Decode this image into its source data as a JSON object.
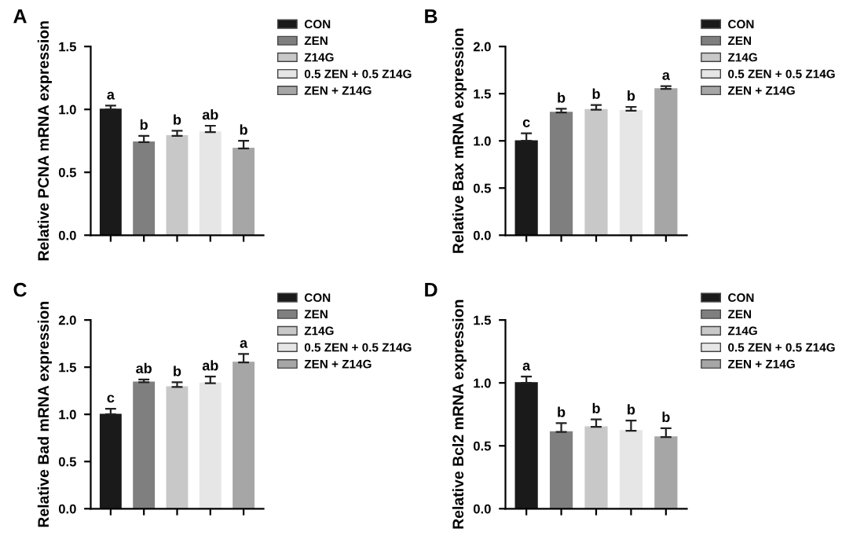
{
  "chart_data": [
    {
      "type": "bar",
      "title": "A",
      "ylabel": "Relative PCNA mRNA expression",
      "categories": [
        null,
        null,
        null,
        null,
        null
      ],
      "ylim": [
        0,
        1.5
      ],
      "yticks": [
        {
          "value": 0,
          "label": "0.0"
        },
        {
          "value": 0.5,
          "label": "0.5"
        },
        {
          "value": 1,
          "label": "1.0"
        },
        {
          "value": 1.5,
          "label": "1.5"
        }
      ],
      "tick_labels": "y",
      "legend": "right",
      "grid": false,
      "series": [
        {
          "name": "CON",
          "color": "#1a1a1a",
          "values": [
            1.0,
            null,
            null,
            null,
            null
          ],
          "errors": [
            [
              1.0,
              1.03
            ],
            null,
            null,
            null,
            null
          ],
          "value_labels": [
            "a",
            null,
            null,
            null,
            null
          ]
        },
        {
          "name": "ZEN",
          "color": "#7f7f7f",
          "values": [
            null,
            0.74,
            null,
            null,
            null
          ],
          "errors": [
            null,
            [
              0.74,
              0.79
            ],
            null,
            null,
            null
          ],
          "value_labels": [
            null,
            "b",
            null,
            null,
            null
          ]
        },
        {
          "name": "Z14G",
          "color": "#c8c8c8",
          "values": [
            null,
            null,
            0.79,
            null,
            null
          ],
          "errors": [
            null,
            null,
            [
              0.79,
              0.83
            ],
            null,
            null
          ],
          "value_labels": [
            null,
            null,
            "b",
            null,
            null
          ]
        },
        {
          "name": "0.5 ZEN + 0.5 Z14G",
          "color": "#e6e6e6",
          "values": [
            null,
            null,
            null,
            0.82,
            null
          ],
          "errors": [
            null,
            null,
            null,
            [
              0.82,
              0.87
            ],
            null
          ],
          "value_labels": [
            null,
            null,
            null,
            "ab",
            null
          ]
        },
        {
          "name": "ZEN + Z14G",
          "color": "#a6a6a6",
          "values": [
            null,
            null,
            null,
            null,
            0.69
          ],
          "errors": [
            null,
            null,
            null,
            null,
            [
              0.69,
              0.75
            ]
          ],
          "value_labels": [
            null,
            null,
            null,
            null,
            "b"
          ]
        }
      ]
    },
    {
      "type": "bar",
      "title": "B",
      "ylabel": "Relative Bax mRNA expression",
      "categories": [
        null,
        null,
        null,
        null,
        null
      ],
      "ylim": [
        0,
        2.0
      ],
      "yticks": [
        {
          "value": 0,
          "label": "0.0"
        },
        {
          "value": 0.5,
          "label": "0.5"
        },
        {
          "value": 1,
          "label": "1.0"
        },
        {
          "value": 1.5,
          "label": "1.5"
        },
        {
          "value": 2,
          "label": "2.0"
        }
      ],
      "tick_labels": "y",
      "legend": "right",
      "grid": false,
      "series": [
        {
          "name": "CON",
          "color": "#1a1a1a",
          "values": [
            1.0,
            null,
            null,
            null,
            null
          ],
          "errors": [
            [
              1.0,
              1.08
            ],
            null,
            null,
            null,
            null
          ],
          "value_labels": [
            "c",
            null,
            null,
            null,
            null
          ]
        },
        {
          "name": "ZEN",
          "color": "#7f7f7f",
          "values": [
            null,
            1.3,
            null,
            null,
            null
          ],
          "errors": [
            null,
            [
              1.3,
              1.34
            ],
            null,
            null,
            null
          ],
          "value_labels": [
            null,
            "b",
            null,
            null,
            null
          ]
        },
        {
          "name": "Z14G",
          "color": "#c8c8c8",
          "values": [
            null,
            null,
            1.33,
            null,
            null
          ],
          "errors": [
            null,
            null,
            [
              1.33,
              1.38
            ],
            null,
            null
          ],
          "value_labels": [
            null,
            null,
            "b",
            null,
            null
          ]
        },
        {
          "name": "0.5 ZEN + 0.5 Z14G",
          "color": "#e6e6e6",
          "values": [
            null,
            null,
            null,
            1.32,
            null
          ],
          "errors": [
            null,
            null,
            null,
            [
              1.32,
              1.36
            ],
            null
          ],
          "value_labels": [
            null,
            null,
            null,
            "b",
            null
          ]
        },
        {
          "name": "ZEN + Z14G",
          "color": "#a6a6a6",
          "values": [
            null,
            null,
            null,
            null,
            1.55
          ],
          "errors": [
            null,
            null,
            null,
            null,
            [
              1.55,
              1.58
            ]
          ],
          "value_labels": [
            null,
            null,
            null,
            null,
            "a"
          ]
        }
      ]
    },
    {
      "type": "bar",
      "title": "C",
      "ylabel": "Relative Bad mRNA expression",
      "categories": [
        null,
        null,
        null,
        null,
        null
      ],
      "ylim": [
        0,
        2.0
      ],
      "yticks": [
        {
          "value": 0,
          "label": "0.0"
        },
        {
          "value": 0.5,
          "label": "0.5"
        },
        {
          "value": 1,
          "label": "1.0"
        },
        {
          "value": 1.5,
          "label": "1.5"
        },
        {
          "value": 2,
          "label": "2.0"
        }
      ],
      "tick_labels": "y",
      "legend": "right",
      "grid": false,
      "series": [
        {
          "name": "CON",
          "color": "#1a1a1a",
          "values": [
            1.0,
            null,
            null,
            null,
            null
          ],
          "errors": [
            [
              1.0,
              1.06
            ],
            null,
            null,
            null,
            null
          ],
          "value_labels": [
            "c",
            null,
            null,
            null,
            null
          ]
        },
        {
          "name": "ZEN",
          "color": "#7f7f7f",
          "values": [
            null,
            1.34,
            null,
            null,
            null
          ],
          "errors": [
            null,
            [
              1.34,
              1.37
            ],
            null,
            null,
            null
          ],
          "value_labels": [
            null,
            "ab",
            null,
            null,
            null
          ]
        },
        {
          "name": "Z14G",
          "color": "#c8c8c8",
          "values": [
            null,
            null,
            1.29,
            null,
            null
          ],
          "errors": [
            null,
            null,
            [
              1.29,
              1.34
            ],
            null,
            null
          ],
          "value_labels": [
            null,
            null,
            "b",
            null,
            null
          ]
        },
        {
          "name": "0.5 ZEN + 0.5 Z14G",
          "color": "#e6e6e6",
          "values": [
            null,
            null,
            null,
            1.33,
            null
          ],
          "errors": [
            null,
            null,
            null,
            [
              1.33,
              1.4
            ],
            null
          ],
          "value_labels": [
            null,
            null,
            null,
            "ab",
            null
          ]
        },
        {
          "name": "ZEN + Z14G",
          "color": "#a6a6a6",
          "values": [
            null,
            null,
            null,
            null,
            1.55
          ],
          "errors": [
            null,
            null,
            null,
            null,
            [
              1.55,
              1.64
            ]
          ],
          "value_labels": [
            null,
            null,
            null,
            null,
            "a"
          ]
        }
      ]
    },
    {
      "type": "bar",
      "title": "D",
      "ylabel": "Relative Bcl2 mRNA expression",
      "categories": [
        null,
        null,
        null,
        null,
        null
      ],
      "ylim": [
        0,
        1.5
      ],
      "yticks": [
        {
          "value": 0,
          "label": "0.0"
        },
        {
          "value": 0.5,
          "label": "0.5"
        },
        {
          "value": 1,
          "label": "1.0"
        },
        {
          "value": 1.5,
          "label": "1.5"
        }
      ],
      "tick_labels": "y",
      "legend": "right",
      "grid": false,
      "series": [
        {
          "name": "CON",
          "color": "#1a1a1a",
          "values": [
            1.0,
            null,
            null,
            null,
            null
          ],
          "errors": [
            [
              1.0,
              1.05
            ],
            null,
            null,
            null,
            null
          ],
          "value_labels": [
            "a",
            null,
            null,
            null,
            null
          ]
        },
        {
          "name": "ZEN",
          "color": "#7f7f7f",
          "values": [
            null,
            0.61,
            null,
            null,
            null
          ],
          "errors": [
            null,
            [
              0.61,
              0.68
            ],
            null,
            null,
            null
          ],
          "value_labels": [
            null,
            "b",
            null,
            null,
            null
          ]
        },
        {
          "name": "Z14G",
          "color": "#c8c8c8",
          "values": [
            null,
            null,
            0.65,
            null,
            null
          ],
          "errors": [
            null,
            null,
            [
              0.65,
              0.71
            ],
            null,
            null
          ],
          "value_labels": [
            null,
            null,
            "b",
            null,
            null
          ]
        },
        {
          "name": "0.5 ZEN + 0.5 Z14G",
          "color": "#e6e6e6",
          "values": [
            null,
            null,
            null,
            0.62,
            null
          ],
          "errors": [
            null,
            null,
            null,
            [
              0.62,
              0.7
            ],
            null
          ],
          "value_labels": [
            null,
            null,
            null,
            "b",
            null
          ]
        },
        {
          "name": "ZEN + Z14G",
          "color": "#a6a6a6",
          "values": [
            null,
            null,
            null,
            null,
            0.57
          ],
          "errors": [
            null,
            null,
            null,
            null,
            [
              0.57,
              0.64
            ]
          ],
          "value_labels": [
            null,
            null,
            null,
            null,
            "b"
          ]
        }
      ]
    }
  ]
}
